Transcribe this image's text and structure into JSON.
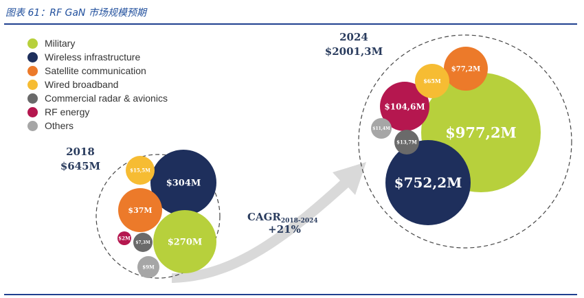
{
  "caption": "图表 61：RF GaN 市场规模预期",
  "chart_data": {
    "type": "bubble",
    "legend": [
      {
        "name": "Military",
        "color": "#b7d03c"
      },
      {
        "name": "Wireless infrastructure",
        "color": "#1e2f5c"
      },
      {
        "name": "Satellite communication",
        "color": "#ec7a2a"
      },
      {
        "name": "Wired broadband",
        "color": "#f6bc33"
      },
      {
        "name": "Commercial radar & avionics",
        "color": "#6a6a6a"
      },
      {
        "name": "RF energy",
        "color": "#b5174f"
      },
      {
        "name": "Others",
        "color": "#a6a6a6"
      }
    ],
    "years": [
      {
        "year": "2018",
        "total": "$645M",
        "segments": [
          {
            "name": "Wireless infrastructure",
            "label": "$304M",
            "value": 304
          },
          {
            "name": "Military",
            "label": "$270M",
            "value": 270
          },
          {
            "name": "Satellite communication",
            "label": "$37M",
            "value": 37
          },
          {
            "name": "Wired broadband",
            "label": "$15,5M",
            "value": 15.5
          },
          {
            "name": "Others",
            "label": "$9M",
            "value": 9
          },
          {
            "name": "Commercial radar & avionics",
            "label": "$7,3M",
            "value": 7.3
          },
          {
            "name": "RF energy",
            "label": "$2M",
            "value": 2
          }
        ]
      },
      {
        "year": "2024",
        "total": "$2001,3M",
        "segments": [
          {
            "name": "Military",
            "label": "$977,2M",
            "value": 977.2
          },
          {
            "name": "Wireless infrastructure",
            "label": "$752,2M",
            "value": 752.2
          },
          {
            "name": "RF energy",
            "label": "$104,6M",
            "value": 104.6
          },
          {
            "name": "Satellite communication",
            "label": "$77,2M",
            "value": 77.2
          },
          {
            "name": "Wired broadband",
            "label": "$65M",
            "value": 65
          },
          {
            "name": "Commercial radar & avionics",
            "label": "$13,7M",
            "value": 13.7
          },
          {
            "name": "Others",
            "label": "$11,4M",
            "value": 11.4
          }
        ]
      }
    ],
    "cagr": {
      "label": "CAGR",
      "period": "2018-2024",
      "value": "+21%"
    }
  }
}
